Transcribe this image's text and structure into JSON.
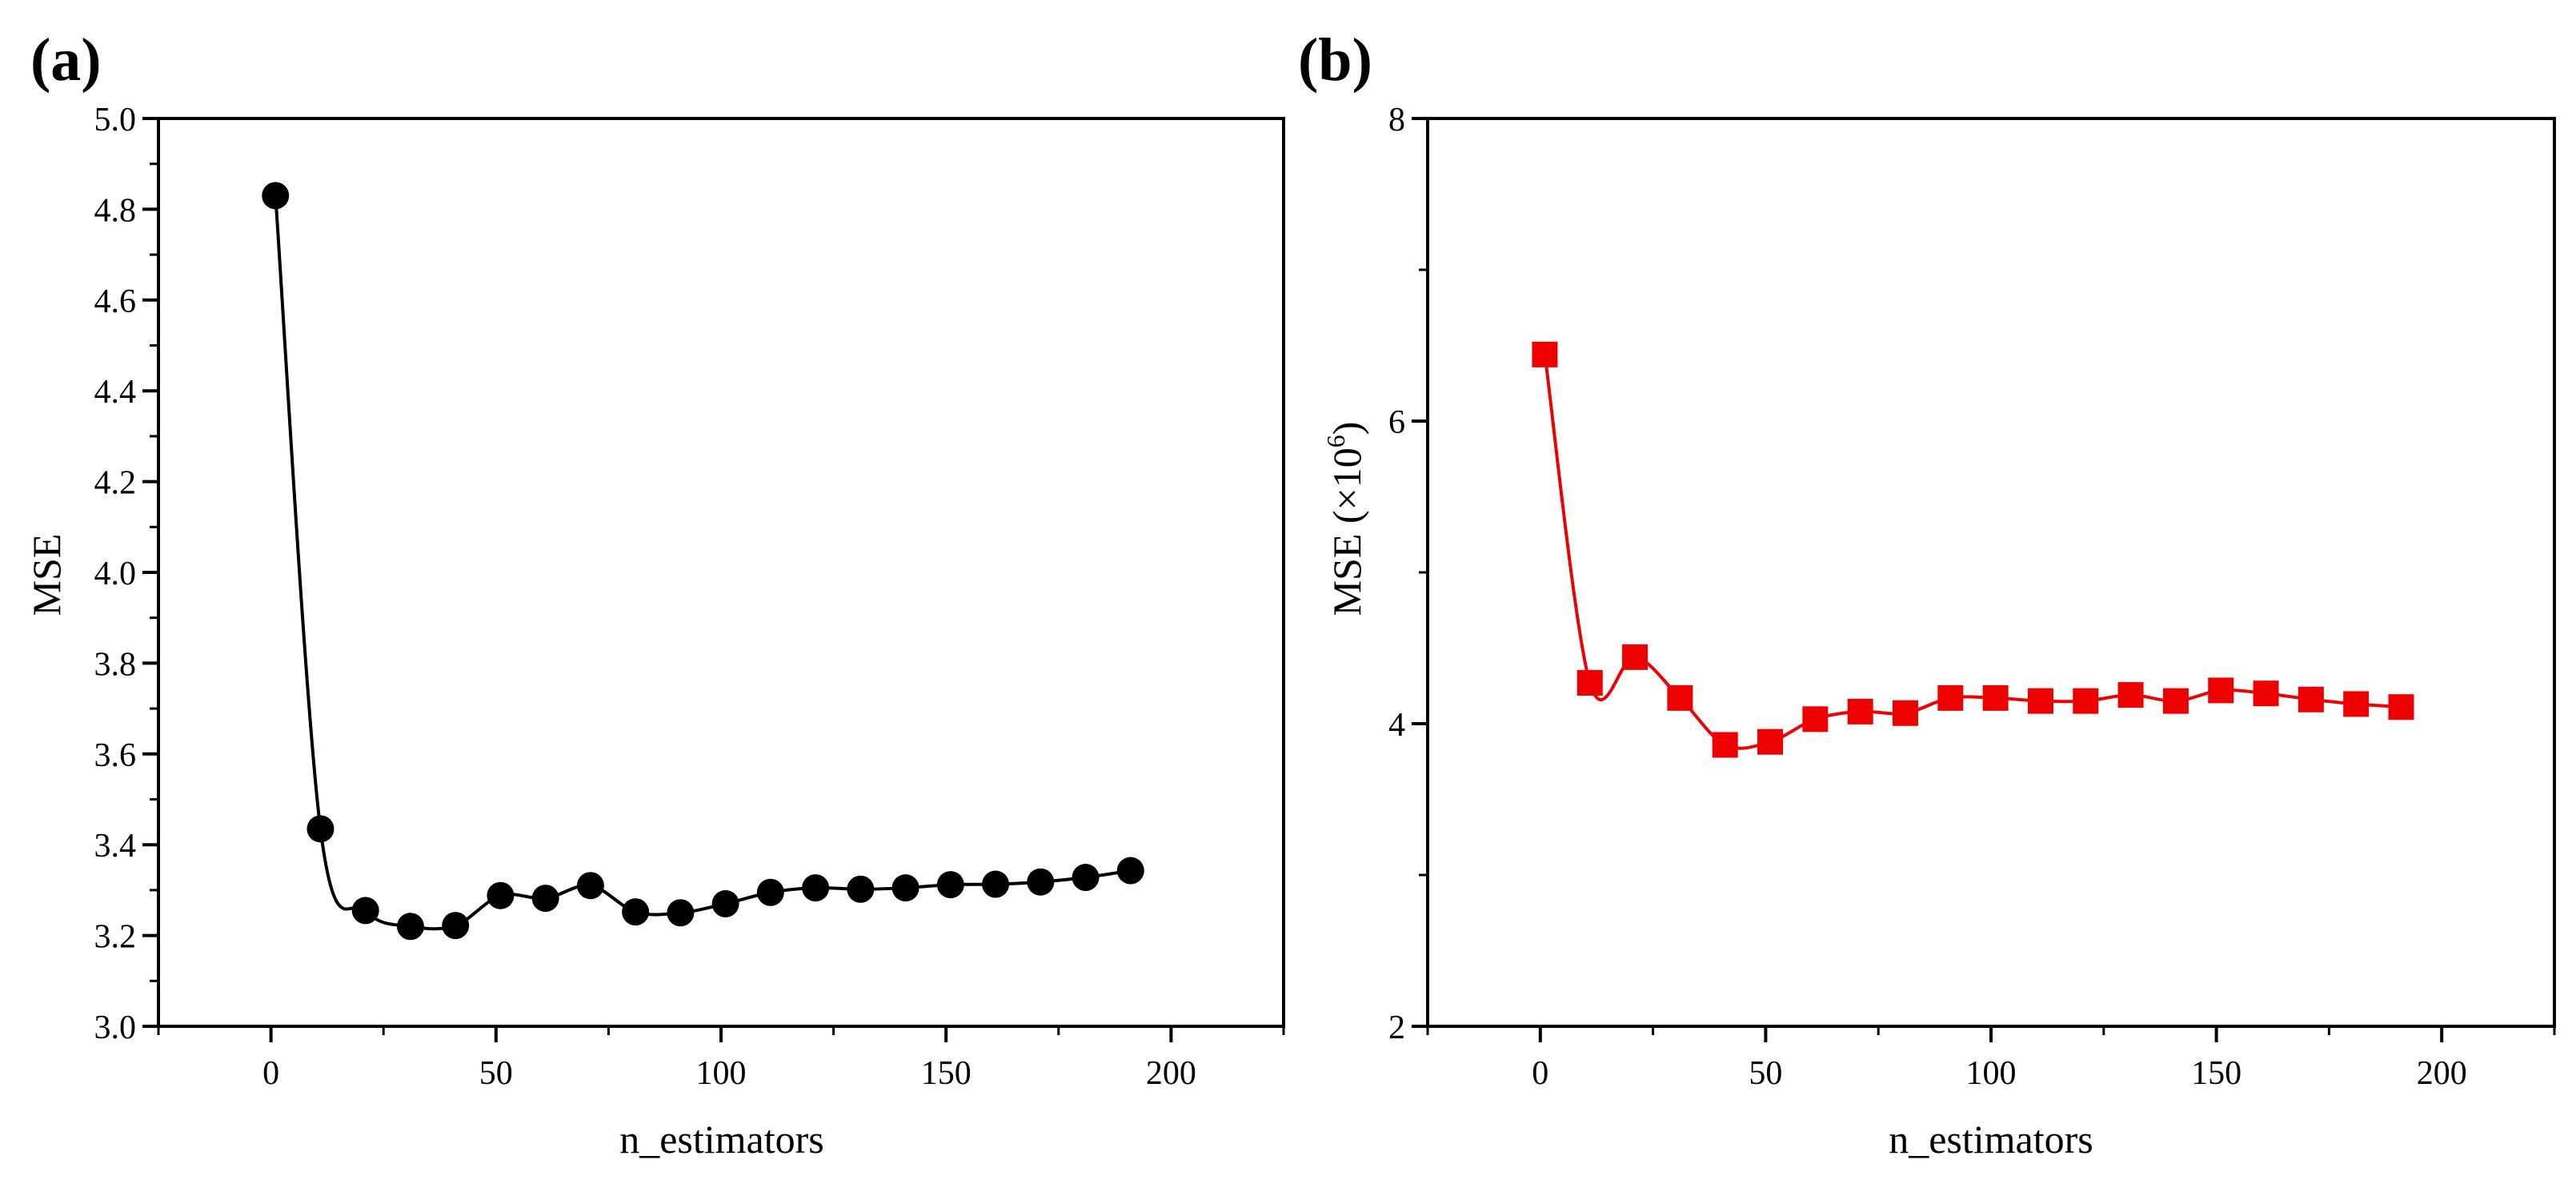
{
  "chart_data": [
    {
      "panel_label": "(a)",
      "type": "line",
      "series": [
        {
          "name": "MSE",
          "color": "#000000",
          "marker": "circle",
          "x": [
            1,
            11,
            21,
            31,
            41,
            51,
            61,
            71,
            81,
            91,
            101,
            111,
            121,
            131,
            141,
            151,
            161,
            171,
            181,
            191
          ],
          "values": [
            4.83,
            3.435,
            3.255,
            3.22,
            3.222,
            3.288,
            3.282,
            3.31,
            3.252,
            3.25,
            3.27,
            3.295,
            3.305,
            3.302,
            3.305,
            3.312,
            3.313,
            3.318,
            3.328,
            3.343
          ]
        }
      ],
      "xlabel": "n_estimators",
      "ylabel": "MSE",
      "xlim": [
        -25,
        225
      ],
      "ylim": [
        3.0,
        5.0
      ],
      "xticks": [
        0,
        50,
        100,
        150,
        200
      ],
      "xtick_labels": [
        "0",
        "50",
        "100",
        "150",
        "200"
      ],
      "yticks": [
        3.0,
        3.2,
        3.4,
        3.6,
        3.8,
        4.0,
        4.2,
        4.4,
        4.6,
        4.8,
        5.0
      ],
      "ytick_labels": [
        "3.0",
        "3.2",
        "3.4",
        "3.6",
        "3.8",
        "4.0",
        "4.2",
        "4.4",
        "4.6",
        "4.8",
        "5.0"
      ],
      "grid": false,
      "legend": "none"
    },
    {
      "panel_label": "(b)",
      "type": "line",
      "series": [
        {
          "name": "MSE",
          "color": "#ee0000",
          "marker": "square",
          "x": [
            1,
            11,
            21,
            31,
            41,
            51,
            61,
            71,
            81,
            91,
            101,
            111,
            121,
            131,
            141,
            151,
            161,
            171,
            181,
            191
          ],
          "values": [
            6.44,
            4.27,
            4.44,
            4.17,
            3.86,
            3.88,
            4.03,
            4.08,
            4.07,
            4.17,
            4.17,
            4.15,
            4.15,
            4.19,
            4.15,
            4.22,
            4.2,
            4.16,
            4.13,
            4.11
          ]
        }
      ],
      "xlabel": "n_estimators",
      "ylabel_main": "MSE (×10",
      "ylabel_sup": "6",
      "ylabel_end": ")",
      "xlim": [
        -25,
        225
      ],
      "ylim": [
        2,
        8
      ],
      "xticks": [
        0,
        50,
        100,
        150,
        200
      ],
      "xtick_labels": [
        "0",
        "50",
        "100",
        "150",
        "200"
      ],
      "yticks": [
        2,
        4,
        6,
        8
      ],
      "ytick_labels": [
        "2",
        "4",
        "6",
        "8"
      ],
      "minor_yticks": [
        3,
        5,
        7
      ],
      "grid": false,
      "legend": "none"
    }
  ]
}
